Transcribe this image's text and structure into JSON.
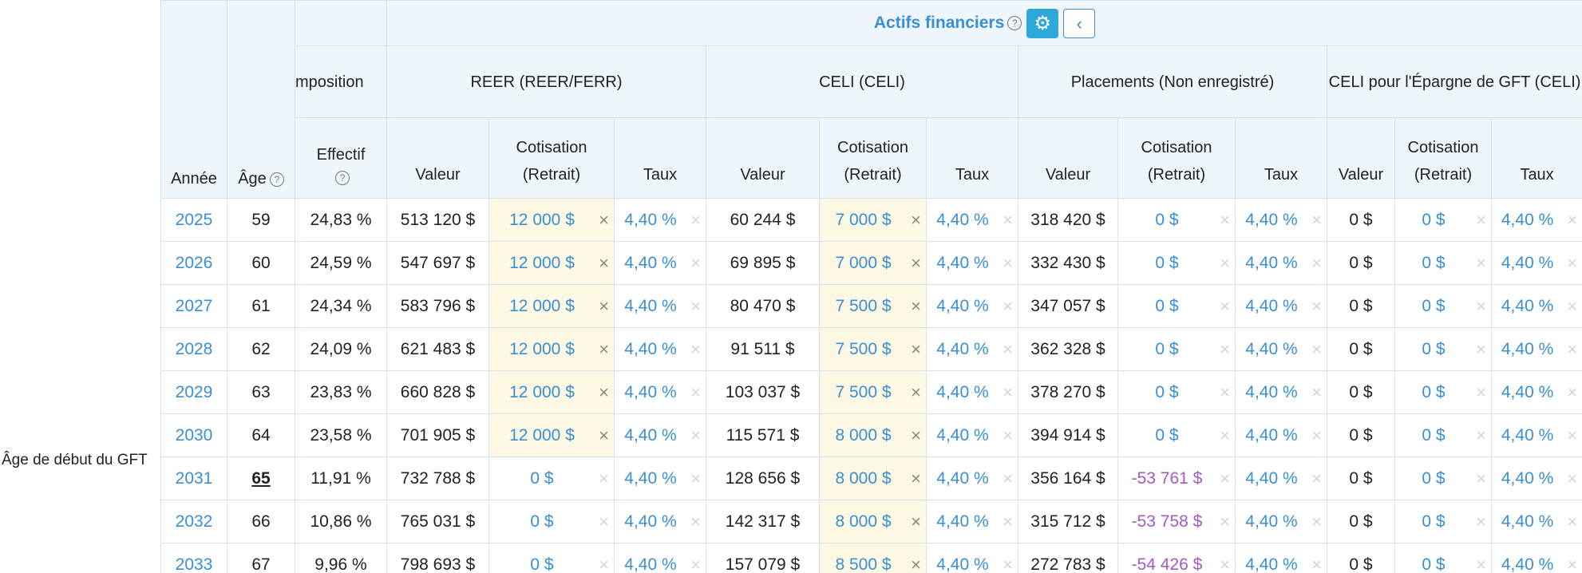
{
  "side_label": "Âge de début du GFT",
  "header": {
    "year": "Année",
    "age": "Âge",
    "group_title": "Actifs financiers",
    "groups": [
      "mposition",
      "REER (REER/FERR)",
      "CELI (CELI)",
      "Placements (Non enregistré)",
      "CELI pour l'Épargne de GFT (CELI)"
    ],
    "columns": [
      "Effectif",
      "Valeur",
      "Cotisation (Retrait)",
      "Taux",
      "Valeur",
      "Cotisation (Retrait)",
      "Taux",
      "Valeur",
      "Cotisation (Retrait)",
      "Taux",
      "Valeur",
      "Cotisation (Retrait)",
      "Taux"
    ]
  },
  "table": {
    "rows": [
      [
        "2025",
        "59",
        "24,83 %",
        "513 120 $",
        "12 000 $",
        "4,40 %",
        "60 244 $",
        "7 000 $",
        "4,40 %",
        "318 420 $",
        "0 $",
        "4,40 %",
        "0 $",
        "0 $",
        "4,40 %"
      ],
      [
        "2026",
        "60",
        "24,59 %",
        "547 697 $",
        "12 000 $",
        "4,40 %",
        "69 895 $",
        "7 000 $",
        "4,40 %",
        "332 430 $",
        "0 $",
        "4,40 %",
        "0 $",
        "0 $",
        "4,40 %"
      ],
      [
        "2027",
        "61",
        "24,34 %",
        "583 796 $",
        "12 000 $",
        "4,40 %",
        "80 470 $",
        "7 500 $",
        "4,40 %",
        "347 057 $",
        "0 $",
        "4,40 %",
        "0 $",
        "0 $",
        "4,40 %"
      ],
      [
        "2028",
        "62",
        "24,09 %",
        "621 483 $",
        "12 000 $",
        "4,40 %",
        "91 511 $",
        "7 500 $",
        "4,40 %",
        "362 328 $",
        "0 $",
        "4,40 %",
        "0 $",
        "0 $",
        "4,40 %"
      ],
      [
        "2029",
        "63",
        "23,83 %",
        "660 828 $",
        "12 000 $",
        "4,40 %",
        "103 037 $",
        "7 500 $",
        "4,40 %",
        "378 270 $",
        "0 $",
        "4,40 %",
        "0 $",
        "0 $",
        "4,40 %"
      ],
      [
        "2030",
        "64",
        "23,58 %",
        "701 905 $",
        "12 000 $",
        "4,40 %",
        "115 571 $",
        "8 000 $",
        "4,40 %",
        "394 914 $",
        "0 $",
        "4,40 %",
        "0 $",
        "0 $",
        "4,40 %"
      ],
      [
        "2031",
        "65",
        "11,91 %",
        "732 788 $",
        "0 $",
        "4,40 %",
        "128 656 $",
        "8 000 $",
        "4,40 %",
        "356 164 $",
        "-53 761 $",
        "4,40 %",
        "0 $",
        "0 $",
        "4,40 %"
      ],
      [
        "2032",
        "66",
        "10,86 %",
        "765 031 $",
        "0 $",
        "4,40 %",
        "142 317 $",
        "8 000 $",
        "4,40 %",
        "315 712 $",
        "-53 758 $",
        "4,40 %",
        "0 $",
        "0 $",
        "4,40 %"
      ],
      [
        "2033",
        "67",
        "9,96 %",
        "798 693 $",
        "0 $",
        "4,40 %",
        "157 079 $",
        "8 500 $",
        "4,40 %",
        "272 783 $",
        "-54 426 $",
        "4,40 %",
        "0 $",
        "0 $",
        "4,40 %"
      ]
    ]
  }
}
